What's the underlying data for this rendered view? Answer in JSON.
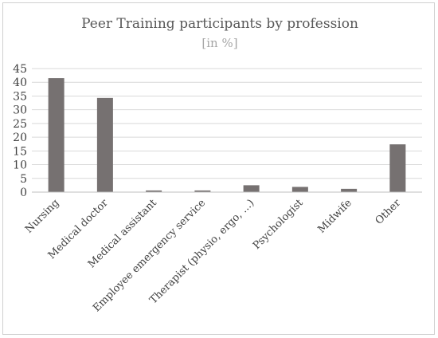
{
  "chart_data": {
    "type": "bar",
    "title": "Peer Training participants by profession",
    "subtitle": "[in %]",
    "xlabel": "",
    "ylabel": "",
    "ylim": [
      0,
      45
    ],
    "yticks": [
      0,
      5,
      10,
      15,
      20,
      25,
      30,
      35,
      40,
      45
    ],
    "grid": true,
    "legend": "none",
    "bar_color": "#767171",
    "categories": [
      "Nursing",
      "Medical doctor",
      "Medical assistant",
      "Employee emergency service",
      "Therapist (physio, ergo, ...)",
      "Psychologist",
      "Midwife",
      "Other"
    ],
    "values": [
      41.5,
      34.3,
      0.6,
      0.6,
      2.5,
      1.9,
      1.2,
      17.4
    ]
  }
}
